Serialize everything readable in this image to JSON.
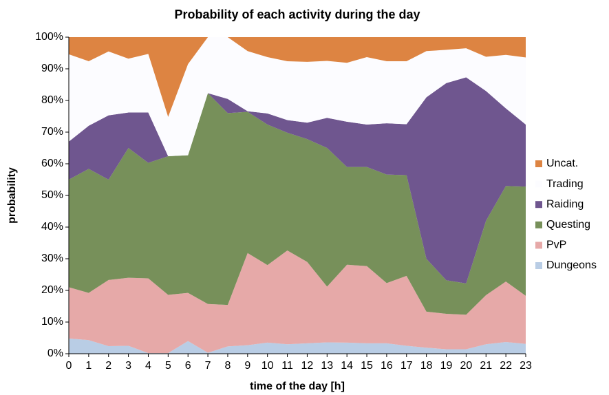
{
  "chart_data": {
    "type": "stacked_area",
    "title": "Probability of each activity during the day",
    "x_label": "time of the day [h]",
    "y_label": "probability",
    "x": [
      0,
      1,
      2,
      3,
      4,
      5,
      6,
      7,
      8,
      9,
      10,
      11,
      12,
      13,
      14,
      15,
      16,
      17,
      18,
      19,
      20,
      21,
      22,
      23
    ],
    "xlim": [
      0,
      23
    ],
    "xticks": [
      0,
      1,
      2,
      3,
      4,
      5,
      6,
      7,
      8,
      9,
      10,
      11,
      12,
      13,
      14,
      15,
      16,
      17,
      18,
      19,
      20,
      21,
      22,
      23
    ],
    "ylim": [
      0,
      100
    ],
    "yticks": [
      {
        "value": 0,
        "label": "0%"
      },
      {
        "value": 10,
        "label": "10%"
      },
      {
        "value": 20,
        "label": "20%"
      },
      {
        "value": 30,
        "label": "30%"
      },
      {
        "value": 40,
        "label": "40%"
      },
      {
        "value": 50,
        "label": "50%"
      },
      {
        "value": 60,
        "label": "60%"
      },
      {
        "value": 70,
        "label": "70%"
      },
      {
        "value": 80,
        "label": "80%"
      },
      {
        "value": 90,
        "label": "90%"
      },
      {
        "value": 100,
        "label": "100%"
      }
    ],
    "grid": false,
    "legend": "right",
    "series": [
      {
        "name": "Dungeons",
        "color": "#b9cde5",
        "values": [
          4.8,
          4.3,
          2.4,
          2.5,
          0.2,
          0.2,
          4,
          0.3,
          2.3,
          2.7,
          3.5,
          3,
          3.3,
          3.6,
          3.5,
          3.3,
          3.3,
          2.5,
          1.9,
          1.4,
          1.4,
          3,
          3.7,
          3.1
        ]
      },
      {
        "name": "PvP",
        "color": "#e6a9a8",
        "values": [
          16.2,
          14.9,
          20.9,
          21.5,
          23.6,
          18.4,
          15.2,
          15.4,
          13.1,
          29.1,
          24.5,
          29.6,
          25.7,
          17.6,
          24.6,
          24.4,
          19,
          22.1,
          11.4,
          11.2,
          10.9,
          15.5,
          19.1,
          15.2
        ]
      },
      {
        "name": "Questing",
        "color": "#77905a",
        "values": [
          34,
          39.2,
          31.7,
          41,
          36.5,
          43.8,
          43.5,
          66.6,
          60.6,
          44.6,
          44.4,
          37.2,
          38.8,
          43.8,
          30.9,
          31.3,
          34.3,
          31.8,
          16.7,
          10.6,
          9.9,
          23.5,
          30.2,
          34.5
        ]
      },
      {
        "name": "Raiding",
        "color": "#6f568f",
        "values": [
          12,
          13.6,
          20.3,
          11.2,
          15.9,
          0,
          0,
          0,
          4.5,
          0.2,
          3.5,
          4,
          5.2,
          9.5,
          14.3,
          13.4,
          16.2,
          16.1,
          51,
          62.3,
          65.1,
          41,
          24.5,
          19.6
        ]
      },
      {
        "name": "Trading",
        "color": "#fcfcff",
        "values": [
          27.6,
          20.4,
          20.2,
          17,
          18.5,
          12.4,
          28.8,
          17.7,
          19.5,
          19,
          17.8,
          18.6,
          19.2,
          18,
          18.6,
          21.3,
          19.6,
          19.9,
          14.6,
          10.5,
          9.2,
          10.8,
          16.9,
          21.2
        ]
      },
      {
        "name": "Uncat.",
        "color": "#dd8442",
        "values": [
          5.4,
          7.6,
          4.5,
          6.8,
          5.3,
          25.2,
          8.5,
          0,
          0,
          4.4,
          6.3,
          7.6,
          7.8,
          7.5,
          8.1,
          6.3,
          7.6,
          7.6,
          4.4,
          4,
          3.5,
          6.2,
          5.6,
          6.4
        ]
      }
    ]
  }
}
